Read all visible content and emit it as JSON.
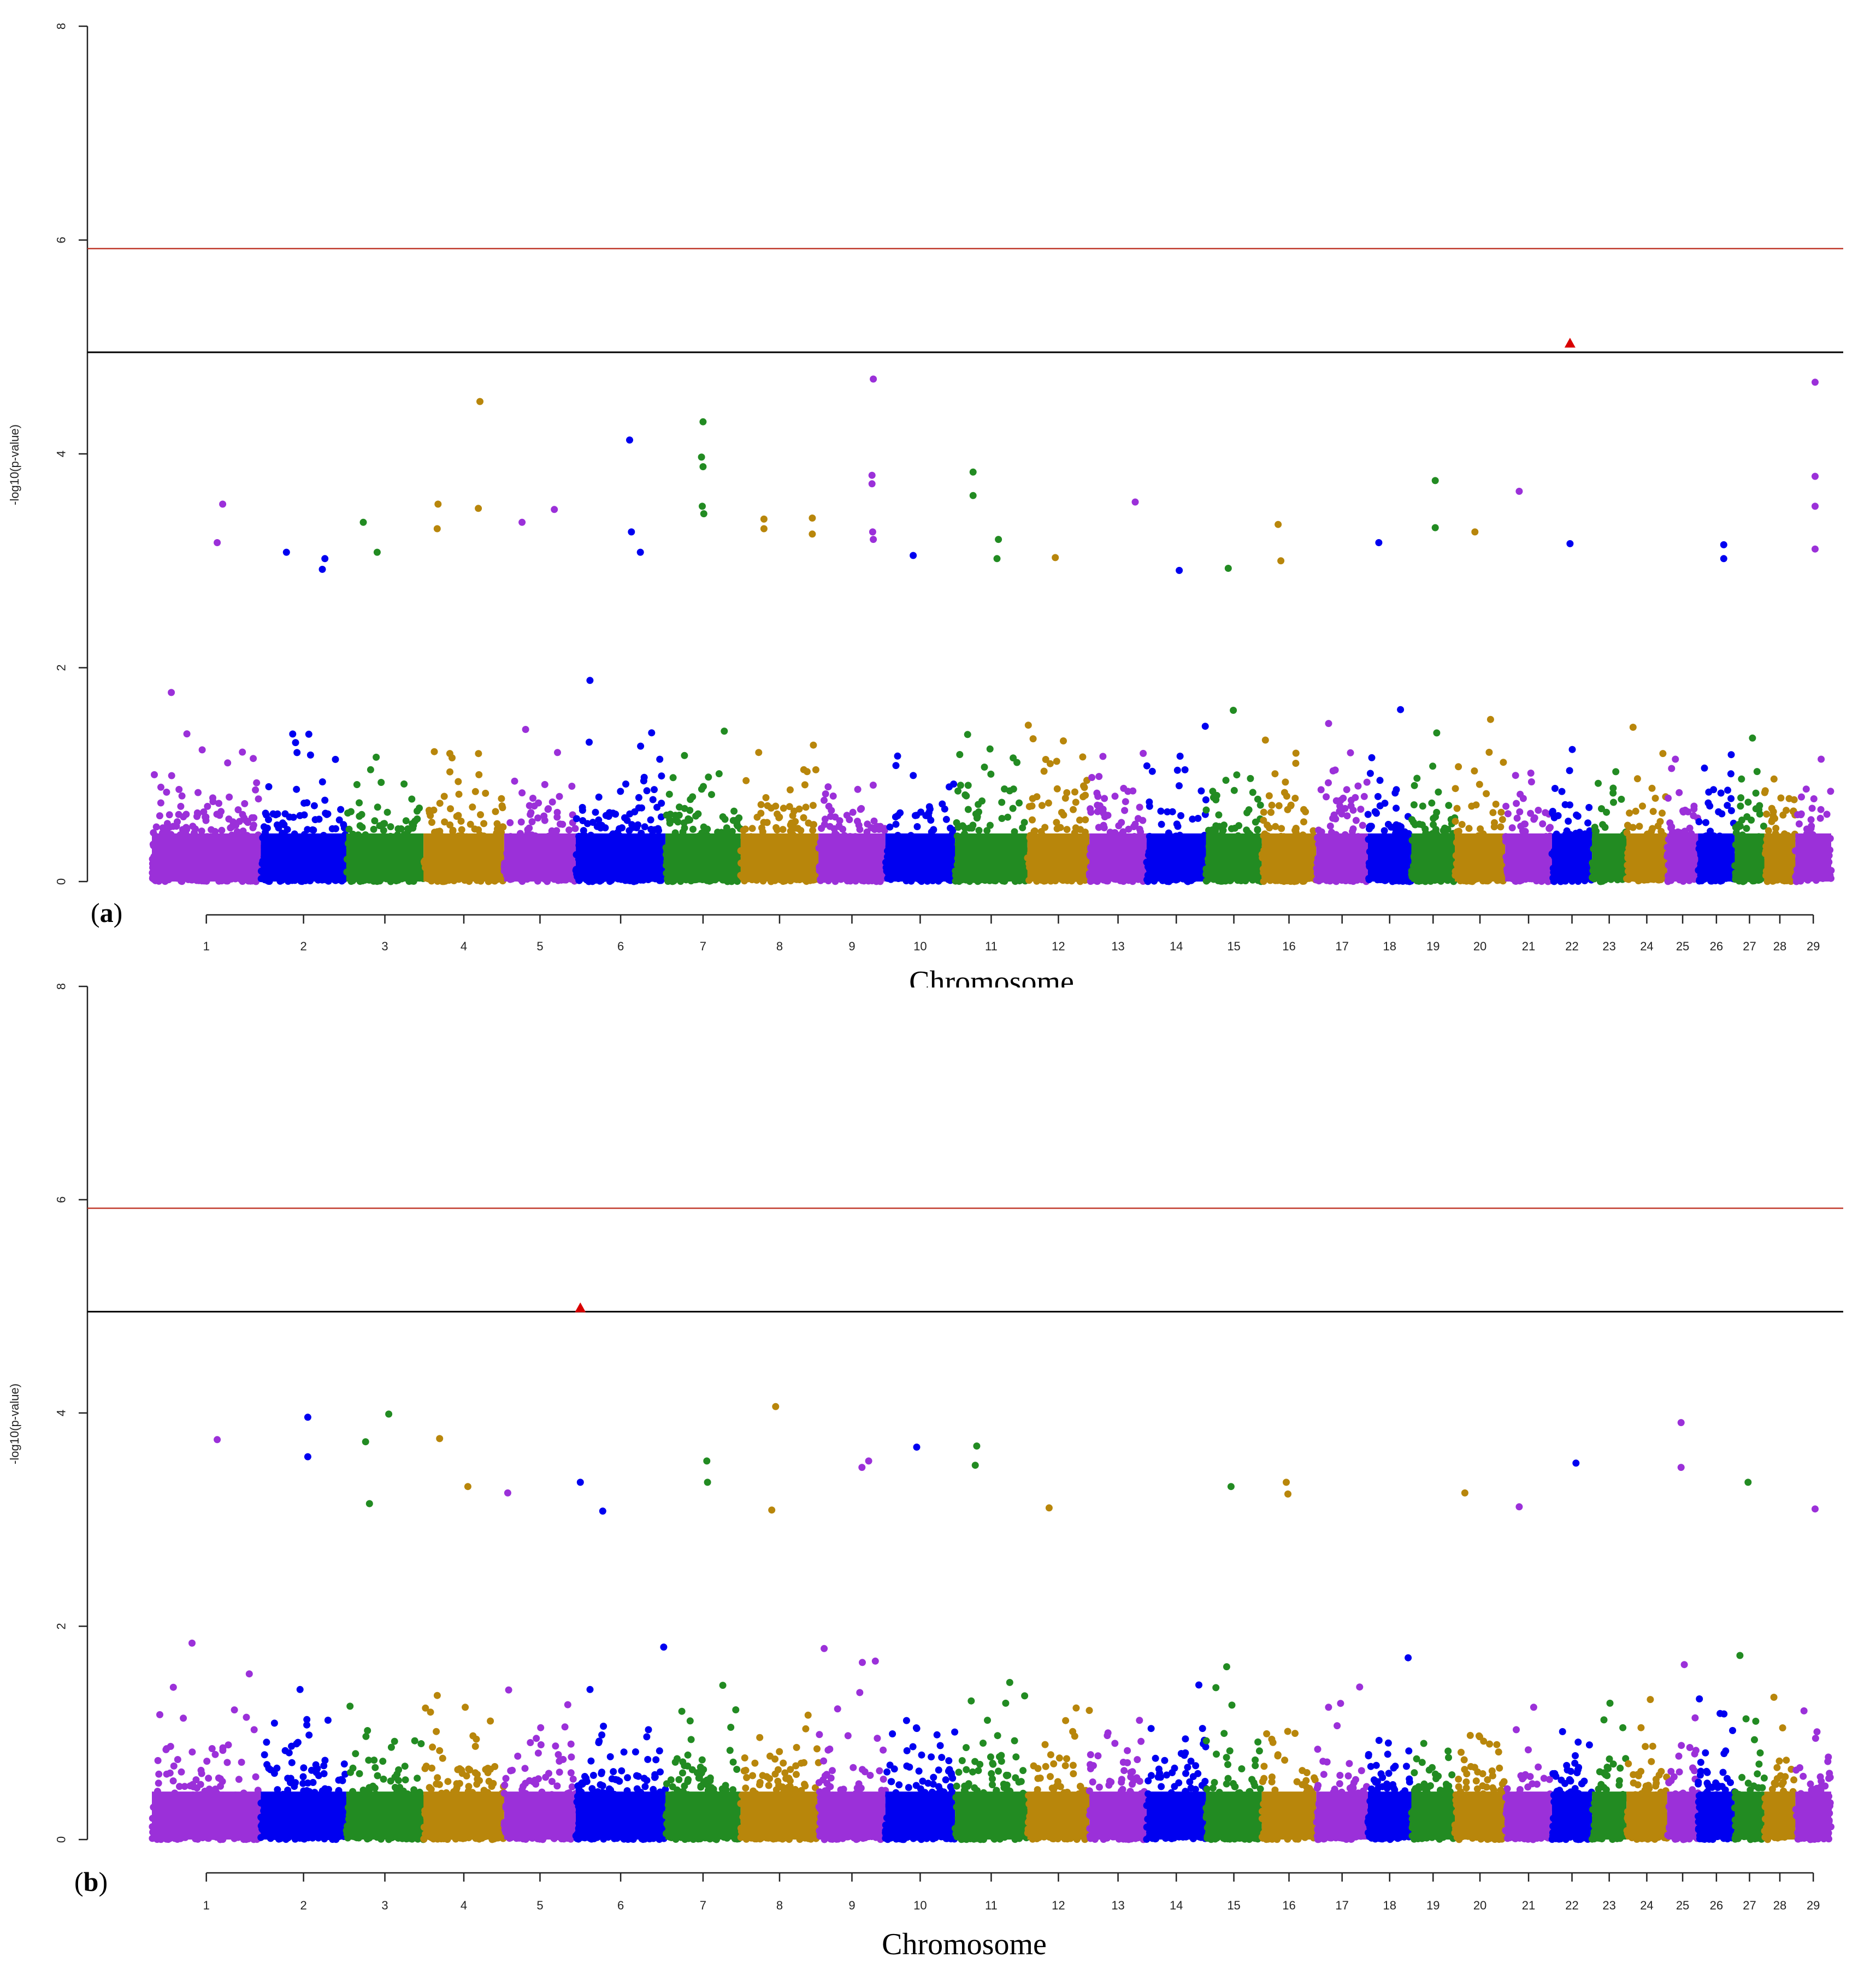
{
  "figure": {
    "colors": {
      "purple": "#9b30d9",
      "blue": "#0000f0",
      "green": "#228b22",
      "gold": "#b8860b",
      "suggestive_line": "#000000",
      "significance_line": "#c0392b",
      "top_hit_marker": "#d90000"
    },
    "chromosome_color_order": [
      "purple",
      "blue",
      "green",
      "gold"
    ],
    "marker_shape_top_hit": "triangle"
  },
  "chart_data": [
    {
      "type": "scatter",
      "subtype": "manhattan",
      "panel_label": "a",
      "xlabel": "Chromosome",
      "ylabel": "-log10(p-value)",
      "ylim": [
        0,
        8
      ],
      "yticks": [
        "0",
        "2",
        "4",
        "6",
        "8"
      ],
      "categories": [
        "1",
        "2",
        "3",
        "4",
        "5",
        "6",
        "7",
        "8",
        "9",
        "10",
        "11",
        "12",
        "13",
        "14",
        "15",
        "16",
        "17",
        "18",
        "19",
        "20",
        "21",
        "22",
        "23",
        "24",
        "25",
        "26",
        "27",
        "28",
        "29"
      ],
      "chromosome_widths": [
        1.58,
        1.24,
        1.12,
        1.17,
        1.04,
        1.3,
        1.09,
        1.13,
        0.97,
        1.01,
        1.05,
        0.9,
        0.83,
        0.86,
        0.81,
        0.79,
        0.75,
        0.63,
        0.63,
        0.73,
        0.68,
        0.58,
        0.5,
        0.59,
        0.45,
        0.53,
        0.43,
        0.45,
        0.52
      ],
      "bulk_peaks": [
        1.9,
        2.1,
        1.8,
        1.9,
        1.9,
        2.5,
        2.0,
        2.3,
        1.8,
        2.2,
        2.4,
        2.3,
        1.5,
        1.8,
        1.9,
        2.4,
        1.9,
        1.8,
        1.7,
        2.3,
        1.5,
        2.5,
        1.5,
        2.2,
        2.4,
        2.0,
        2.2,
        1.9,
        2.3
      ],
      "thresholds": {
        "suggestive": 4.95,
        "significant": 5.92
      },
      "top_hits": [
        {
          "chromosome": "22",
          "pos": 0.45,
          "value": 5.03
        }
      ],
      "notable_points": [
        {
          "chromosome": "1",
          "pos": 0.65,
          "value": 3.53
        },
        {
          "chromosome": "1",
          "pos": 0.6,
          "value": 3.17
        },
        {
          "chromosome": "2",
          "pos": 0.3,
          "value": 3.08
        },
        {
          "chromosome": "2",
          "pos": 0.75,
          "value": 3.02
        },
        {
          "chromosome": "2",
          "pos": 0.72,
          "value": 2.92
        },
        {
          "chromosome": "3",
          "pos": 0.22,
          "value": 3.36
        },
        {
          "chromosome": "3",
          "pos": 0.4,
          "value": 3.08
        },
        {
          "chromosome": "4",
          "pos": 0.18,
          "value": 3.53
        },
        {
          "chromosome": "4",
          "pos": 0.17,
          "value": 3.3
        },
        {
          "chromosome": "4",
          "pos": 0.7,
          "value": 4.49
        },
        {
          "chromosome": "4",
          "pos": 0.68,
          "value": 3.49
        },
        {
          "chromosome": "5",
          "pos": 0.25,
          "value": 3.36
        },
        {
          "chromosome": "5",
          "pos": 0.7,
          "value": 3.48
        },
        {
          "chromosome": "6",
          "pos": 0.6,
          "value": 4.13
        },
        {
          "chromosome": "6",
          "pos": 0.62,
          "value": 3.27
        },
        {
          "chromosome": "6",
          "pos": 0.72,
          "value": 3.08
        },
        {
          "chromosome": "7",
          "pos": 0.5,
          "value": 4.3
        },
        {
          "chromosome": "7",
          "pos": 0.48,
          "value": 3.97
        },
        {
          "chromosome": "7",
          "pos": 0.5,
          "value": 3.88
        },
        {
          "chromosome": "7",
          "pos": 0.49,
          "value": 3.51
        },
        {
          "chromosome": "7",
          "pos": 0.51,
          "value": 3.44
        },
        {
          "chromosome": "8",
          "pos": 0.3,
          "value": 3.39
        },
        {
          "chromosome": "8",
          "pos": 0.3,
          "value": 3.3
        },
        {
          "chromosome": "8",
          "pos": 0.92,
          "value": 3.4
        },
        {
          "chromosome": "8",
          "pos": 0.92,
          "value": 3.25
        },
        {
          "chromosome": "9",
          "pos": 0.82,
          "value": 4.7
        },
        {
          "chromosome": "9",
          "pos": 0.8,
          "value": 3.8
        },
        {
          "chromosome": "9",
          "pos": 0.8,
          "value": 3.72
        },
        {
          "chromosome": "9",
          "pos": 0.81,
          "value": 3.27
        },
        {
          "chromosome": "9",
          "pos": 0.82,
          "value": 3.2
        },
        {
          "chromosome": "10",
          "pos": 0.4,
          "value": 3.05
        },
        {
          "chromosome": "11",
          "pos": 0.25,
          "value": 3.83
        },
        {
          "chromosome": "11",
          "pos": 0.25,
          "value": 3.61
        },
        {
          "chromosome": "11",
          "pos": 0.6,
          "value": 3.2
        },
        {
          "chromosome": "11",
          "pos": 0.58,
          "value": 3.02
        },
        {
          "chromosome": "12",
          "pos": 0.45,
          "value": 3.03
        },
        {
          "chromosome": "13",
          "pos": 0.8,
          "value": 3.55
        },
        {
          "chromosome": "14",
          "pos": 0.55,
          "value": 2.91
        },
        {
          "chromosome": "15",
          "pos": 0.4,
          "value": 2.93
        },
        {
          "chromosome": "16",
          "pos": 0.3,
          "value": 3.34
        },
        {
          "chromosome": "16",
          "pos": 0.35,
          "value": 3.0
        },
        {
          "chromosome": "18",
          "pos": 0.25,
          "value": 3.17
        },
        {
          "chromosome": "19",
          "pos": 0.55,
          "value": 3.75
        },
        {
          "chromosome": "19",
          "pos": 0.55,
          "value": 3.31
        },
        {
          "chromosome": "20",
          "pos": 0.4,
          "value": 3.27
        },
        {
          "chromosome": "21",
          "pos": 0.3,
          "value": 3.65
        },
        {
          "chromosome": "22",
          "pos": 0.45,
          "value": 3.16
        },
        {
          "chromosome": "26",
          "pos": 0.7,
          "value": 3.15
        },
        {
          "chromosome": "26",
          "pos": 0.7,
          "value": 3.02
        },
        {
          "chromosome": "29",
          "pos": 0.55,
          "value": 4.67
        },
        {
          "chromosome": "29",
          "pos": 0.55,
          "value": 3.79
        },
        {
          "chromosome": "29",
          "pos": 0.55,
          "value": 3.51
        },
        {
          "chromosome": "29",
          "pos": 0.55,
          "value": 3.11
        }
      ],
      "grid": false
    },
    {
      "type": "scatter",
      "subtype": "manhattan",
      "panel_label": "b",
      "xlabel": "Chromosome",
      "ylabel": "-log10(p-value)",
      "ylim": [
        0,
        8
      ],
      "yticks": [
        "0",
        "2",
        "4",
        "6",
        "8"
      ],
      "categories": [
        "1",
        "2",
        "3",
        "4",
        "5",
        "6",
        "7",
        "8",
        "9",
        "10",
        "11",
        "12",
        "13",
        "14",
        "15",
        "16",
        "17",
        "18",
        "19",
        "20",
        "21",
        "22",
        "23",
        "24",
        "25",
        "26",
        "27",
        "28",
        "29"
      ],
      "chromosome_widths": [
        1.58,
        1.24,
        1.12,
        1.17,
        1.04,
        1.3,
        1.09,
        1.13,
        0.97,
        1.01,
        1.05,
        0.9,
        0.83,
        0.86,
        0.81,
        0.79,
        0.75,
        0.63,
        0.63,
        0.73,
        0.68,
        0.58,
        0.5,
        0.59,
        0.45,
        0.53,
        0.43,
        0.45,
        0.52
      ],
      "bulk_peaks": [
        1.9,
        2.4,
        2.2,
        2.0,
        1.8,
        2.3,
        1.9,
        2.2,
        2.0,
        2.2,
        2.1,
        1.8,
        1.9,
        2.1,
        1.9,
        2.4,
        1.7,
        2.0,
        1.8,
        2.1,
        1.7,
        2.4,
        1.9,
        2.2,
        2.0,
        2.2,
        2.2,
        1.8,
        2.0
      ],
      "thresholds": {
        "suggestive": 4.95,
        "significant": 5.92
      },
      "top_hits": [
        {
          "chromosome": "6",
          "pos": 0.05,
          "value": 4.98
        }
      ],
      "notable_points": [
        {
          "chromosome": "1",
          "pos": 0.6,
          "value": 3.75
        },
        {
          "chromosome": "2",
          "pos": 0.55,
          "value": 3.96
        },
        {
          "chromosome": "2",
          "pos": 0.55,
          "value": 3.59
        },
        {
          "chromosome": "3",
          "pos": 0.25,
          "value": 3.73
        },
        {
          "chromosome": "3",
          "pos": 0.55,
          "value": 3.99
        },
        {
          "chromosome": "3",
          "pos": 0.3,
          "value": 3.15
        },
        {
          "chromosome": "4",
          "pos": 0.2,
          "value": 3.76
        },
        {
          "chromosome": "4",
          "pos": 0.55,
          "value": 3.31
        },
        {
          "chromosome": "5",
          "pos": 0.05,
          "value": 3.25
        },
        {
          "chromosome": "6",
          "pos": 0.05,
          "value": 3.35
        },
        {
          "chromosome": "6",
          "pos": 0.3,
          "value": 3.08
        },
        {
          "chromosome": "7",
          "pos": 0.55,
          "value": 3.55
        },
        {
          "chromosome": "7",
          "pos": 0.56,
          "value": 3.35
        },
        {
          "chromosome": "8",
          "pos": 0.45,
          "value": 4.06
        },
        {
          "chromosome": "8",
          "pos": 0.4,
          "value": 3.09
        },
        {
          "chromosome": "9",
          "pos": 0.75,
          "value": 3.55
        },
        {
          "chromosome": "9",
          "pos": 0.65,
          "value": 3.49
        },
        {
          "chromosome": "10",
          "pos": 0.45,
          "value": 3.68
        },
        {
          "chromosome": "11",
          "pos": 0.3,
          "value": 3.69
        },
        {
          "chromosome": "11",
          "pos": 0.28,
          "value": 3.51
        },
        {
          "chromosome": "12",
          "pos": 0.35,
          "value": 3.11
        },
        {
          "chromosome": "15",
          "pos": 0.45,
          "value": 3.31
        },
        {
          "chromosome": "16",
          "pos": 0.45,
          "value": 3.35
        },
        {
          "chromosome": "16",
          "pos": 0.48,
          "value": 3.24
        },
        {
          "chromosome": "20",
          "pos": 0.2,
          "value": 3.25
        },
        {
          "chromosome": "21",
          "pos": 0.3,
          "value": 3.12
        },
        {
          "chromosome": "22",
          "pos": 0.6,
          "value": 3.53
        },
        {
          "chromosome": "25",
          "pos": 0.45,
          "value": 3.91
        },
        {
          "chromosome": "25",
          "pos": 0.45,
          "value": 3.49
        },
        {
          "chromosome": "27",
          "pos": 0.45,
          "value": 3.35
        },
        {
          "chromosome": "29",
          "pos": 0.55,
          "value": 3.1
        }
      ],
      "grid": false
    }
  ]
}
